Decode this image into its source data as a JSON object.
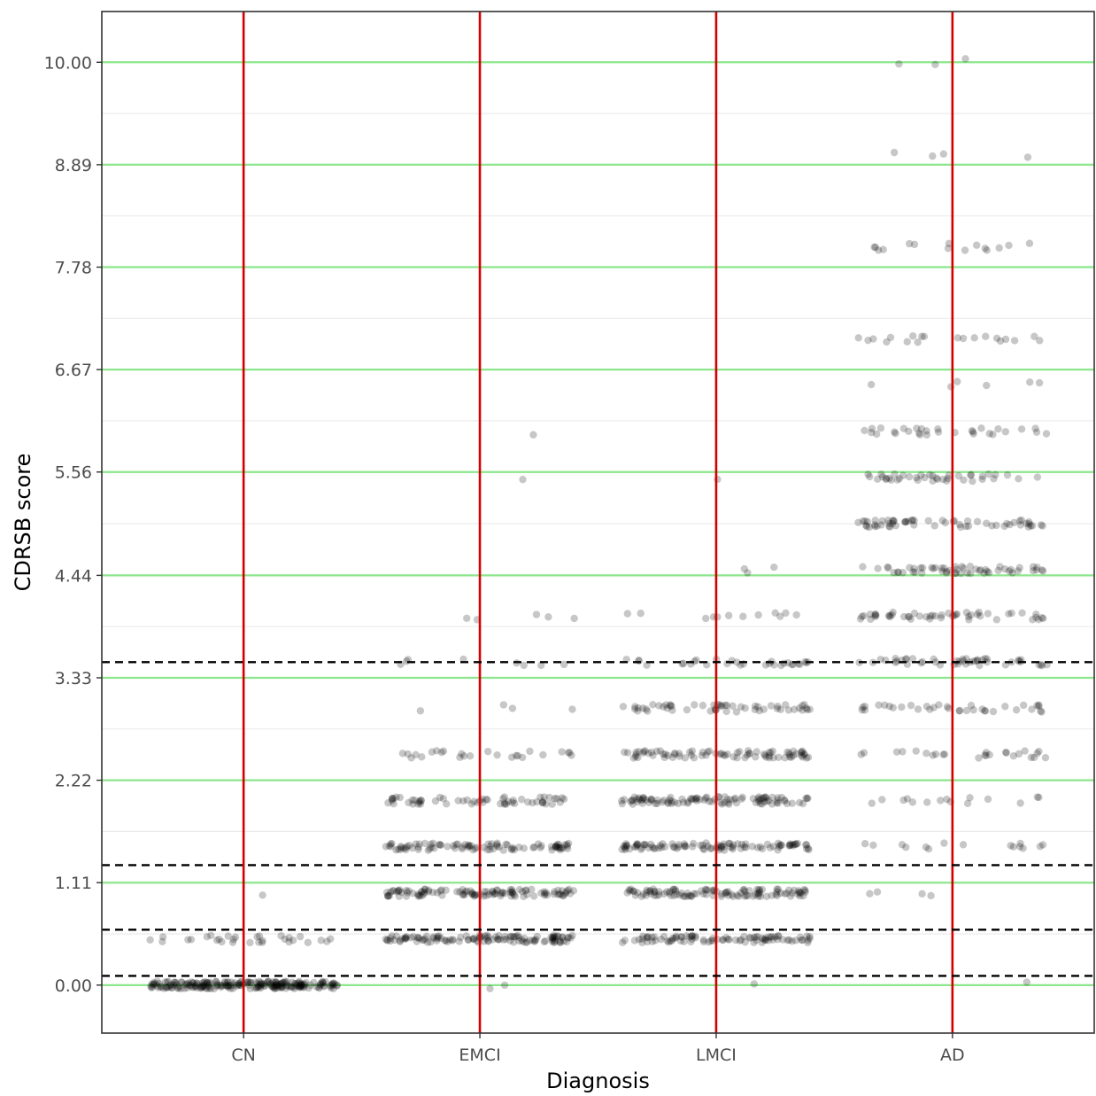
{
  "chart_data": {
    "type": "scatter",
    "title": "",
    "xlabel": "Diagnosis",
    "ylabel": "CDRSB score",
    "categories": [
      "CN",
      "EMCI",
      "LMCI",
      "AD"
    ],
    "ylim": [
      -0.52,
      10.55
    ],
    "y_ticks": [
      "0.00",
      "1.11",
      "2.22",
      "3.33",
      "4.44",
      "5.56",
      "6.67",
      "7.78",
      "8.89",
      "10.00"
    ],
    "y_tick_values": [
      0,
      1.11,
      2.22,
      3.33,
      4.44,
      5.56,
      6.67,
      7.78,
      8.89,
      10.0
    ],
    "minor_gridlines": [
      0.555,
      1.665,
      2.775,
      3.885,
      5.0,
      6.115,
      7.225,
      8.335,
      9.445
    ],
    "green_hlines": [
      0,
      1.11,
      2.22,
      3.33,
      4.44,
      5.56,
      6.67,
      7.78,
      8.89,
      10.0
    ],
    "dashed_hlines": [
      0.1,
      0.6,
      1.3,
      3.5
    ],
    "red_vlines": [
      "CN",
      "EMCI",
      "LMCI",
      "AD"
    ],
    "jitter_width": 0.4,
    "colors": {
      "points": "#000000",
      "green_lines": "#8ce68c",
      "red_lines": "#d40000",
      "dashed_lines": "#000000",
      "minor_grid": "#ebebeb",
      "panel_border": "#333333"
    },
    "series": [
      {
        "category": "CN",
        "groups": [
          {
            "y": 0.0,
            "count": 230
          },
          {
            "y": 0.5,
            "count": 30
          },
          {
            "y": 1.0,
            "count": 1
          }
        ]
      },
      {
        "category": "EMCI",
        "groups": [
          {
            "y": 0.0,
            "count": 2
          },
          {
            "y": 0.5,
            "count": 120
          },
          {
            "y": 1.0,
            "count": 110
          },
          {
            "y": 1.5,
            "count": 90
          },
          {
            "y": 2.0,
            "count": 60
          },
          {
            "y": 2.5,
            "count": 25
          },
          {
            "y": 3.0,
            "count": 4
          },
          {
            "y": 3.5,
            "count": 8
          },
          {
            "y": 4.0,
            "count": 5
          },
          {
            "y": 5.5,
            "count": 1
          },
          {
            "y": 6.0,
            "count": 1
          }
        ]
      },
      {
        "category": "LMCI",
        "groups": [
          {
            "y": 0.0,
            "count": 1
          },
          {
            "y": 0.5,
            "count": 90
          },
          {
            "y": 1.0,
            "count": 110
          },
          {
            "y": 1.5,
            "count": 100
          },
          {
            "y": 2.0,
            "count": 100
          },
          {
            "y": 2.5,
            "count": 80
          },
          {
            "y": 3.0,
            "count": 55
          },
          {
            "y": 3.5,
            "count": 30
          },
          {
            "y": 4.0,
            "count": 12
          },
          {
            "y": 4.5,
            "count": 3
          },
          {
            "y": 5.5,
            "count": 1
          }
        ]
      },
      {
        "category": "AD",
        "groups": [
          {
            "y": 0.0,
            "count": 1
          },
          {
            "y": 1.0,
            "count": 4
          },
          {
            "y": 1.5,
            "count": 15
          },
          {
            "y": 2.0,
            "count": 15
          },
          {
            "y": 2.5,
            "count": 25
          },
          {
            "y": 3.0,
            "count": 35
          },
          {
            "y": 3.5,
            "count": 45
          },
          {
            "y": 4.0,
            "count": 50
          },
          {
            "y": 4.5,
            "count": 55
          },
          {
            "y": 5.0,
            "count": 60
          },
          {
            "y": 5.5,
            "count": 40
          },
          {
            "y": 6.0,
            "count": 30
          },
          {
            "y": 6.5,
            "count": 6
          },
          {
            "y": 7.0,
            "count": 20
          },
          {
            "y": 8.0,
            "count": 15
          },
          {
            "y": 9.0,
            "count": 4
          },
          {
            "y": 10.0,
            "count": 3
          }
        ]
      }
    ]
  }
}
